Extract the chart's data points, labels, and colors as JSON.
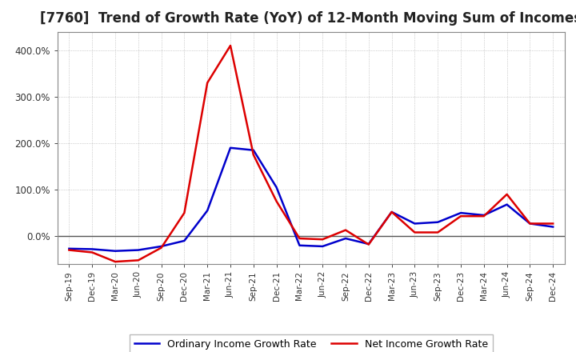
{
  "title": "[7760]  Trend of Growth Rate (YoY) of 12-Month Moving Sum of Incomes",
  "x_labels": [
    "Sep-19",
    "Dec-19",
    "Mar-20",
    "Jun-20",
    "Sep-20",
    "Dec-20",
    "Mar-21",
    "Jun-21",
    "Sep-21",
    "Dec-21",
    "Mar-22",
    "Jun-22",
    "Sep-22",
    "Dec-22",
    "Mar-23",
    "Jun-23",
    "Sep-23",
    "Dec-23",
    "Mar-24",
    "Jun-24",
    "Sep-24",
    "Dec-24"
  ],
  "ordinary_income": [
    -0.27,
    -0.28,
    -0.32,
    -0.3,
    -0.22,
    -0.1,
    0.55,
    1.9,
    1.85,
    1.05,
    -0.2,
    -0.22,
    -0.05,
    -0.17,
    0.52,
    0.27,
    0.3,
    0.5,
    0.45,
    0.68,
    0.27,
    0.2
  ],
  "net_income": [
    -0.3,
    -0.35,
    -0.55,
    -0.52,
    -0.25,
    0.5,
    3.3,
    4.1,
    1.75,
    0.75,
    -0.05,
    -0.07,
    0.13,
    -0.18,
    0.52,
    0.08,
    0.08,
    0.43,
    0.43,
    0.9,
    0.27,
    0.27
  ],
  "ylim": [
    -0.6,
    4.4
  ],
  "yticks": [
    0.0,
    1.0,
    2.0,
    3.0,
    4.0
  ],
  "ytick_labels": [
    "0.0%",
    "100.0%",
    "200.0%",
    "300.0%",
    "400.0%"
  ],
  "ordinary_color": "#0000cc",
  "net_color": "#dd0000",
  "background_color": "#ffffff",
  "plot_bg_color": "#f0f0f0",
  "grid_color": "#aaaaaa",
  "title_fontsize": 12,
  "legend_ordinary": "Ordinary Income Growth Rate",
  "legend_net": "Net Income Growth Rate"
}
